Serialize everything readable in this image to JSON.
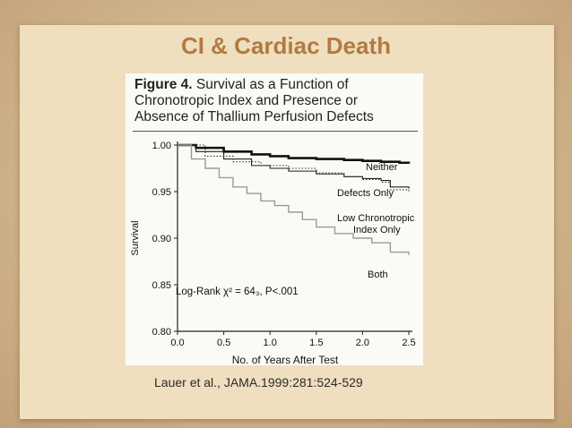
{
  "slide": {
    "title": "CI & Cardiac Death",
    "citation": "Lauer et al., JAMA.1999:281:524-529"
  },
  "figure": {
    "caption_label": "Figure 4.",
    "caption_line1_rest": " Survival as a Function of",
    "caption_line2": "Chronotropic Index and Presence or",
    "caption_line3": "Absence of Thallium Perfusion Defects"
  },
  "chart_data": {
    "type": "line",
    "title": "",
    "xlabel": "No. of Years After Test",
    "ylabel": "Survival",
    "xlim": [
      0,
      2.5
    ],
    "ylim": [
      0.8,
      1.0
    ],
    "xticks": [
      "0.0",
      "0.5",
      "1.0",
      "1.5",
      "2.0",
      "2.5"
    ],
    "yticks": [
      "0.80",
      "0.85",
      "0.90",
      "0.95",
      "1.00"
    ],
    "annotation": "Log-Rank χ² = 64₃, P<.001",
    "series": [
      {
        "name": "Neither",
        "style": "thick-solid",
        "x": [
          0,
          0.2,
          0.5,
          0.8,
          1.0,
          1.2,
          1.5,
          1.8,
          2.0,
          2.2,
          2.4,
          2.5
        ],
        "y": [
          1.0,
          0.997,
          0.993,
          0.99,
          0.988,
          0.986,
          0.985,
          0.984,
          0.983,
          0.982,
          0.981,
          0.98
        ]
      },
      {
        "name": "Defects Only",
        "style": "thin-solid",
        "x": [
          0,
          0.2,
          0.5,
          0.8,
          1.0,
          1.2,
          1.5,
          1.8,
          2.0,
          2.2,
          2.3,
          2.5
        ],
        "y": [
          1.0,
          0.993,
          0.985,
          0.978,
          0.975,
          0.972,
          0.969,
          0.966,
          0.964,
          0.962,
          0.955,
          0.953
        ]
      },
      {
        "name": "Low Chronotropic Index Only",
        "style": "dotted",
        "x": [
          0,
          0.3,
          0.6,
          0.9,
          1.2,
          1.5,
          1.8,
          2.0,
          2.2,
          2.3,
          2.5
        ],
        "y": [
          1.0,
          0.988,
          0.982,
          0.978,
          0.975,
          0.97,
          0.966,
          0.963,
          0.96,
          0.952,
          0.949
        ]
      },
      {
        "name": "Both",
        "style": "gray-step",
        "x": [
          0,
          0.15,
          0.3,
          0.45,
          0.6,
          0.75,
          0.9,
          1.05,
          1.2,
          1.35,
          1.5,
          1.7,
          1.9,
          2.1,
          2.3,
          2.5
        ],
        "y": [
          1.0,
          0.985,
          0.975,
          0.965,
          0.955,
          0.948,
          0.94,
          0.935,
          0.928,
          0.92,
          0.912,
          0.905,
          0.9,
          0.895,
          0.885,
          0.882
        ]
      }
    ],
    "labels": [
      "Neither",
      "Defects Only",
      "Low Chronotropic",
      "Index Only",
      "Both"
    ]
  }
}
